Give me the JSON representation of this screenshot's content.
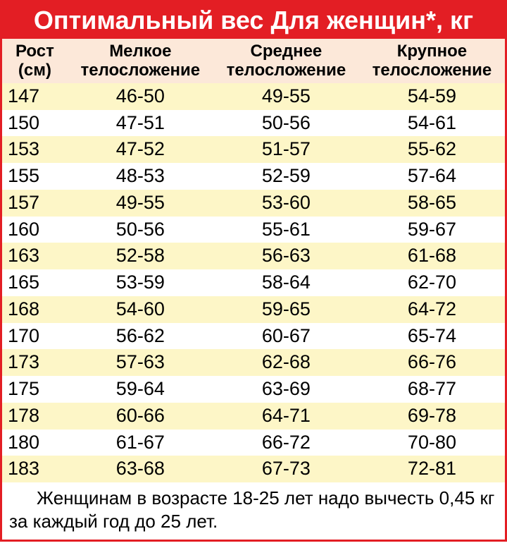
{
  "table": {
    "title": "Оптимальный вес Для женщин*, кг",
    "title_bg": "#e31e24",
    "title_color": "#ffffff",
    "title_fontsize": 36,
    "border_color": "#e31e24",
    "header_bg": "#fce8d9",
    "row_odd_bg": "#fdf6c7",
    "row_even_bg": "#ffffff",
    "text_color": "#000000",
    "header_fontsize": 24,
    "cell_fontsize": 27,
    "footnote_fontsize": 26,
    "columns": [
      "Рост (см)",
      "Мелкое телосложение",
      "Среднее телосложение",
      "Крупное телосложение"
    ],
    "rows": [
      [
        "147",
        "46-50",
        "49-55",
        "54-59"
      ],
      [
        "150",
        "47-51",
        "50-56",
        "54-61"
      ],
      [
        "153",
        "47-52",
        "51-57",
        "55-62"
      ],
      [
        "155",
        "48-53",
        "52-59",
        "57-64"
      ],
      [
        "157",
        "49-55",
        "53-60",
        "58-65"
      ],
      [
        "160",
        "50-56",
        "55-61",
        "59-67"
      ],
      [
        "163",
        "52-58",
        "56-63",
        "61-68"
      ],
      [
        "165",
        "53-59",
        "58-64",
        "62-70"
      ],
      [
        "168",
        "54-60",
        "59-65",
        "64-72"
      ],
      [
        "170",
        "56-62",
        "60-67",
        "65-74"
      ],
      [
        "173",
        "57-63",
        "62-68",
        "66-76"
      ],
      [
        "175",
        "59-64",
        "63-69",
        "68-77"
      ],
      [
        "178",
        "60-66",
        "64-71",
        "69-78"
      ],
      [
        "180",
        "61-67",
        "66-72",
        "70-80"
      ],
      [
        "183",
        "63-68",
        "67-73",
        "72-81"
      ]
    ],
    "footnote": "Женщинам в возрасте 18-25 лет надо вычесть 0,45 кг за каждый год до 25 лет."
  }
}
